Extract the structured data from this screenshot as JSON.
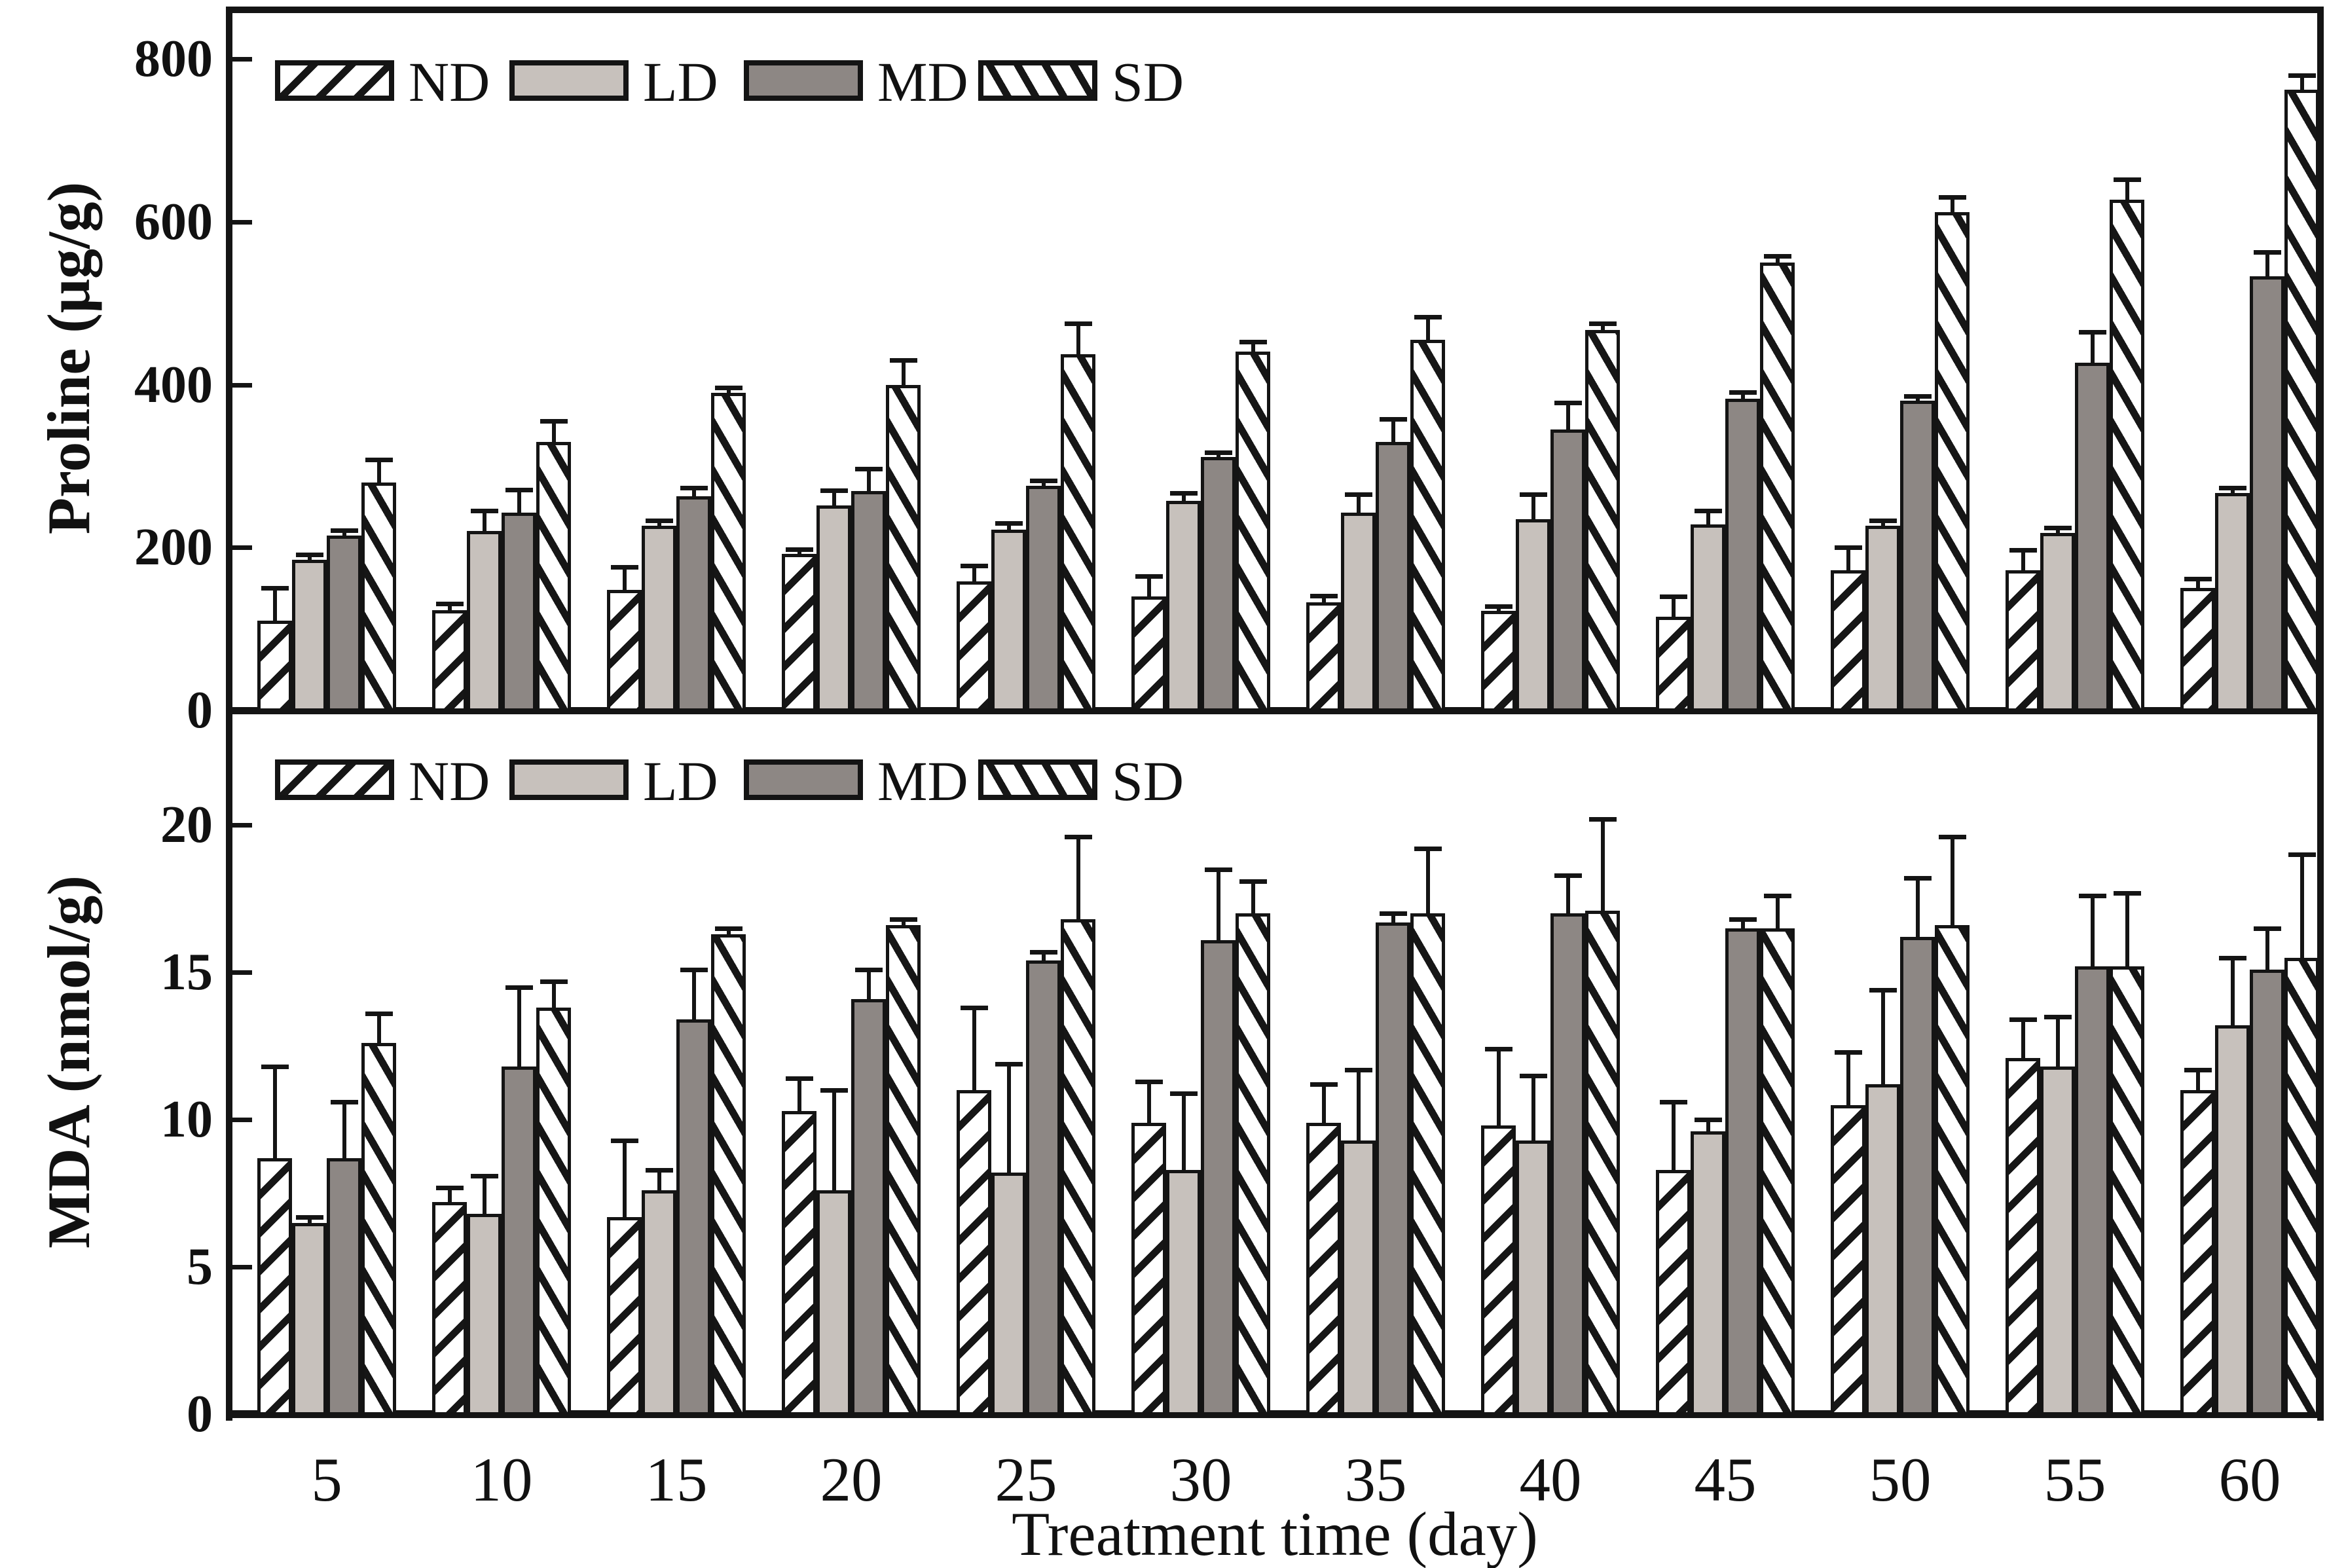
{
  "figure": {
    "x_axis_title": "Treatment time (day)",
    "legend_labels": [
      "ND",
      "LD",
      "MD",
      "SD"
    ],
    "colors": {
      "ld_fill": "#c7c1bc",
      "md_fill": "#8d8784",
      "stroke": "#141414",
      "background": "#ffffff"
    }
  },
  "chart_data": [
    {
      "type": "bar",
      "title": "",
      "ylabel": "Proline (μg/g)",
      "xlabel": "",
      "ylim": [
        0,
        864
      ],
      "yticks": [
        0,
        200,
        400,
        600,
        800
      ],
      "categories": [
        5,
        10,
        15,
        20,
        25,
        30,
        35,
        40,
        45,
        50,
        55,
        60
      ],
      "legend_position": "top-left-inside",
      "grid": false,
      "error_bars": "plus-direction-only",
      "series": [
        {
          "name": "ND",
          "values": [
            110,
            123,
            148,
            192,
            158,
            140,
            133,
            122,
            115,
            172,
            172,
            150
          ],
          "errors_plus": [
            40,
            8,
            28,
            6,
            20,
            25,
            8,
            6,
            25,
            28,
            25,
            12
          ]
        },
        {
          "name": "LD",
          "values": [
            185,
            220,
            227,
            252,
            222,
            257,
            243,
            235,
            228,
            227,
            218,
            267
          ],
          "errors_plus": [
            6,
            25,
            6,
            18,
            8,
            10,
            22,
            30,
            17,
            6,
            6,
            6
          ]
        },
        {
          "name": "MD",
          "values": [
            215,
            243,
            263,
            269,
            276,
            311,
            330,
            345,
            383,
            380,
            427,
            533
          ],
          "errors_plus": [
            6,
            28,
            10,
            28,
            6,
            6,
            28,
            33,
            8,
            6,
            38,
            30
          ]
        },
        {
          "name": "SD",
          "values": [
            280,
            330,
            390,
            400,
            437,
            441,
            455,
            467,
            550,
            612,
            627,
            762
          ],
          "errors_plus": [
            28,
            25,
            6,
            30,
            38,
            12,
            28,
            8,
            8,
            18,
            25,
            18
          ]
        }
      ]
    },
    {
      "type": "bar",
      "title": "",
      "ylabel": "MDA (nmol/g)",
      "xlabel": "Treatment time (day)",
      "ylim": [
        0,
        23.9
      ],
      "yticks": [
        0,
        5,
        10,
        15,
        20
      ],
      "categories": [
        5,
        10,
        15,
        20,
        25,
        30,
        35,
        40,
        45,
        50,
        55,
        60
      ],
      "legend_position": "top-left-inside",
      "grid": false,
      "error_bars": "plus-direction-only",
      "series": [
        {
          "name": "ND",
          "values": [
            8.7,
            7.2,
            6.7,
            10.3,
            11.0,
            9.9,
            9.9,
            9.8,
            8.3,
            10.5,
            12.1,
            11.0
          ],
          "errors_plus": [
            3.1,
            0.5,
            2.6,
            1.1,
            2.8,
            1.4,
            1.3,
            2.6,
            2.3,
            1.8,
            1.3,
            0.7
          ]
        },
        {
          "name": "LD",
          "values": [
            6.5,
            6.8,
            7.6,
            7.6,
            8.2,
            8.3,
            9.3,
            9.3,
            9.6,
            11.2,
            11.8,
            13.2
          ],
          "errors_plus": [
            0.2,
            1.3,
            0.7,
            3.4,
            3.7,
            2.6,
            2.4,
            2.2,
            0.4,
            3.2,
            1.7,
            2.3
          ]
        },
        {
          "name": "MD",
          "values": [
            8.7,
            11.8,
            13.4,
            14.1,
            15.4,
            16.1,
            16.7,
            17.0,
            16.5,
            16.2,
            15.2,
            15.1
          ],
          "errors_plus": [
            1.9,
            2.7,
            1.7,
            1.0,
            0.3,
            2.4,
            0.3,
            1.3,
            0.3,
            2.0,
            2.4,
            1.4
          ]
        },
        {
          "name": "SD",
          "values": [
            12.6,
            13.8,
            16.3,
            16.6,
            16.8,
            17.0,
            17.0,
            17.1,
            16.5,
            16.6,
            15.2,
            15.5
          ],
          "errors_plus": [
            1.0,
            0.9,
            0.2,
            0.2,
            2.8,
            1.1,
            2.2,
            3.1,
            1.1,
            3.0,
            2.5,
            3.5
          ]
        }
      ]
    }
  ]
}
